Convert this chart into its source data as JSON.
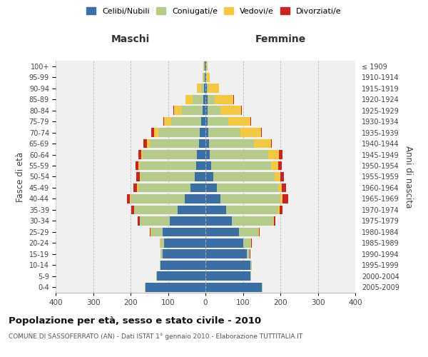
{
  "age_groups": [
    "0-4",
    "5-9",
    "10-14",
    "15-19",
    "20-24",
    "25-29",
    "30-34",
    "35-39",
    "40-44",
    "45-49",
    "50-54",
    "55-59",
    "60-64",
    "65-69",
    "70-74",
    "75-79",
    "80-84",
    "85-89",
    "90-94",
    "95-99",
    "100+"
  ],
  "birth_years": [
    "2005-2009",
    "2000-2004",
    "1995-1999",
    "1990-1994",
    "1985-1989",
    "1980-1984",
    "1975-1979",
    "1970-1974",
    "1965-1969",
    "1960-1964",
    "1955-1959",
    "1950-1954",
    "1945-1949",
    "1940-1944",
    "1935-1939",
    "1930-1934",
    "1925-1929",
    "1920-1924",
    "1915-1919",
    "1910-1914",
    "≤ 1909"
  ],
  "male_celibe": [
    160,
    130,
    120,
    115,
    110,
    115,
    95,
    75,
    55,
    40,
    28,
    25,
    22,
    18,
    15,
    12,
    8,
    5,
    3,
    2,
    2
  ],
  "male_coniugato": [
    2,
    2,
    2,
    5,
    10,
    30,
    80,
    115,
    145,
    140,
    145,
    150,
    145,
    130,
    110,
    80,
    55,
    30,
    8,
    3,
    2
  ],
  "male_vedovo": [
    0,
    0,
    0,
    0,
    1,
    1,
    1,
    1,
    2,
    2,
    3,
    4,
    5,
    8,
    12,
    18,
    20,
    18,
    12,
    3,
    1
  ],
  "male_divorziato": [
    0,
    0,
    0,
    0,
    1,
    2,
    5,
    8,
    8,
    10,
    8,
    8,
    8,
    10,
    8,
    2,
    2,
    0,
    0,
    0,
    0
  ],
  "female_celibe": [
    150,
    120,
    120,
    110,
    100,
    90,
    70,
    55,
    40,
    30,
    20,
    15,
    12,
    10,
    8,
    5,
    5,
    5,
    3,
    2,
    2
  ],
  "female_coniugato": [
    2,
    2,
    3,
    8,
    20,
    50,
    110,
    140,
    160,
    165,
    165,
    160,
    155,
    120,
    85,
    55,
    35,
    20,
    5,
    2,
    1
  ],
  "female_vedovo": [
    0,
    0,
    0,
    1,
    1,
    2,
    2,
    3,
    5,
    8,
    15,
    20,
    30,
    45,
    55,
    60,
    55,
    50,
    28,
    8,
    2
  ],
  "female_divorziato": [
    0,
    0,
    0,
    1,
    2,
    3,
    5,
    8,
    15,
    12,
    10,
    8,
    8,
    2,
    2,
    2,
    2,
    2,
    0,
    0,
    0
  ],
  "colors": {
    "celibe": "#3a6ea5",
    "coniugato": "#b5cb8b",
    "vedovo": "#f5c842",
    "divorziato": "#cc2222"
  },
  "xlim": 400,
  "title": "Popolazione per età, sesso e stato civile - 2010",
  "subtitle": "COMUNE DI SASSOFERRATO (AN) - Dati ISTAT 1° gennaio 2010 - Elaborazione TUTTITALIA.IT",
  "ylabel_left": "Fasce di età",
  "ylabel_right": "Anni di nascita",
  "xlabel_left": "Maschi",
  "xlabel_right": "Femmine",
  "bg_color": "#f0f0f0",
  "grid_color": "#cccccc"
}
